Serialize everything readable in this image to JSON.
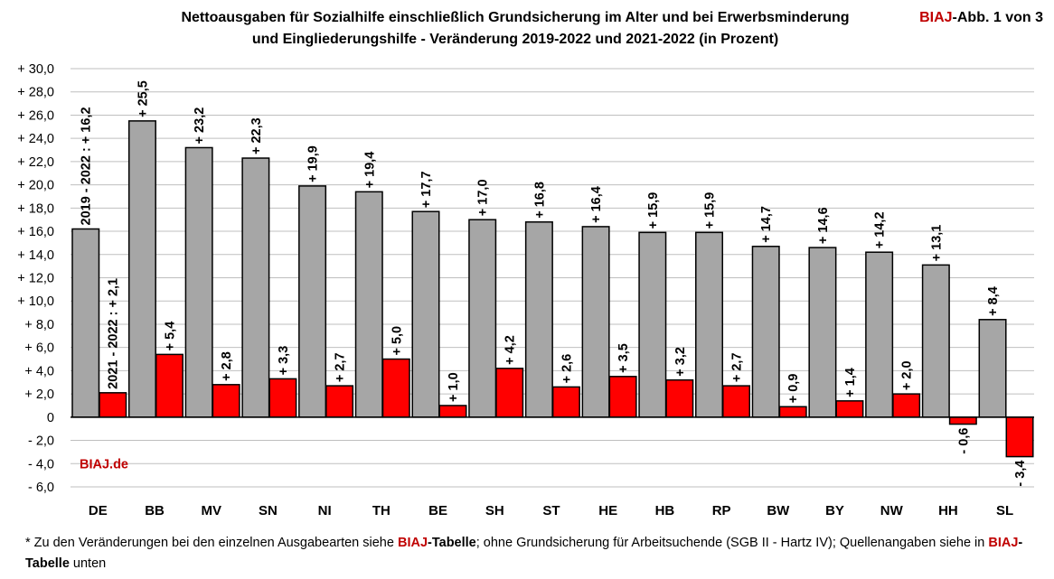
{
  "header": {
    "title_line1": "Nettoausgaben für Sozialhilfe einschließlich Grundsicherung im Alter und bei Erwerbsminderung",
    "title_line2": "und Eingliederungshilfe - Veränderung 2019-2022 und 2021-2022 (in Prozent)",
    "brand_red": "BIAJ",
    "brand_rest": "-Abb. 1 von 3"
  },
  "watermark": "BIAJ.de",
  "footnote": {
    "p1": "* Zu den Veränderungen bei den einzelnen Ausgabearten siehe ",
    "r1": "BIAJ",
    "b1": "-Tabelle",
    "p2": "; ohne Grundsicherung für Arbeitsuchende (SGB II - Hartz IV); Quellenangaben siehe in ",
    "r2": "BIAJ",
    "b2": "-Tabelle",
    "p3": " unten"
  },
  "colors": {
    "series_2019_2022": "#a6a6a6",
    "series_2021_2022": "#ff0000",
    "bar_border": "#000000",
    "grid": "#bfbfbf",
    "brand": "#c00000"
  },
  "chart_data": {
    "type": "bar",
    "categories": [
      "DE",
      "BB",
      "MV",
      "SN",
      "NI",
      "TH",
      "BE",
      "SH",
      "ST",
      "HE",
      "HB",
      "RP",
      "BW",
      "BY",
      "NW",
      "HH",
      "SL"
    ],
    "series": [
      {
        "values": [
          16.2,
          25.5,
          23.2,
          22.3,
          19.9,
          19.4,
          17.7,
          17.0,
          16.8,
          16.4,
          15.9,
          15.9,
          14.7,
          14.6,
          14.2,
          13.1,
          8.4
        ],
        "labels": [
          "2019 - 2022 : + 16,2",
          "+ 25,5",
          "+ 23,2",
          "+ 22,3",
          "+ 19,9",
          "+ 19,4",
          "+ 17,7",
          "+ 17,0",
          "+ 16,8",
          "+ 16,4",
          "+ 15,9",
          "+ 15,9",
          "+ 14,7",
          "+ 14,6",
          "+ 14,2",
          "+ 13,1",
          "+ 8,4"
        ]
      },
      {
        "values": [
          2.1,
          5.4,
          2.8,
          3.3,
          2.7,
          5.0,
          1.0,
          4.2,
          2.6,
          3.5,
          3.2,
          2.7,
          0.9,
          1.4,
          2.0,
          -0.6,
          -3.4
        ],
        "labels": [
          "2021 - 2022 : + 2,1",
          "+ 5,4",
          "+ 2,8",
          "+ 3,3",
          "+ 2,7",
          "+ 5,0",
          "+ 1,0",
          "+ 4,2",
          "+ 2,6",
          "+ 3,5",
          "+ 3,2",
          "+ 2,7",
          "+ 0,9",
          "+ 1,4",
          "+ 2,0",
          "- 0,6",
          "- 3,4"
        ]
      }
    ],
    "ylim": [
      -6,
      30
    ],
    "ytick_values": [
      -6,
      -4,
      -2,
      0,
      2,
      4,
      6,
      8,
      10,
      12,
      14,
      16,
      18,
      20,
      22,
      24,
      26,
      28,
      30
    ],
    "ytick_labels": [
      "- 6,0",
      "- 4,0",
      "- 2,0",
      "0",
      "+ 2,0",
      "+ 4,0",
      "+ 6,0",
      "+ 8,0",
      "+ 10,0",
      "+ 12,0",
      "+ 14,0",
      "+ 16,0",
      "+ 18,0",
      "+ 20,0",
      "+ 22,0",
      "+ 24,0",
      "+ 26,0",
      "+ 28,0",
      "+ 30,0"
    ],
    "grid": true,
    "legend": "none"
  }
}
